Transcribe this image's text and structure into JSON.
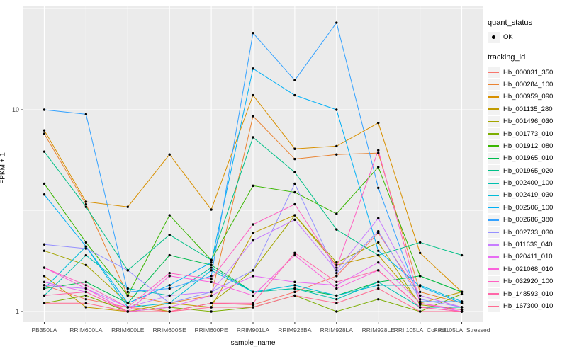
{
  "chart_data": {
    "type": "line",
    "title": "",
    "xlabel": "sample_name",
    "ylabel": "FPKM + 1",
    "y_scale": "log10",
    "y_major_ticks": [
      "1",
      "10"
    ],
    "y_major_values": [
      1,
      10
    ],
    "y_minor_values": [
      3.162,
      31.623
    ],
    "ylim": [
      0.93,
      36
    ],
    "grid": true,
    "legend_position": "right",
    "marker": {
      "shape": "point",
      "color": "#000000",
      "meaning": "quant_status OK"
    },
    "categories": [
      "PB350LA",
      "RRIM600LA",
      "RRIM600LE",
      "RRIM600SE",
      "RRIM600PE",
      "RRIM901LA",
      "RRIM928BA",
      "RRIM928LA",
      "RRIM928LE",
      "RRII105LA_Control",
      "RRII105LA_Stressed"
    ],
    "series": [
      {
        "name": "Hb_000031_350",
        "color": "#F8766D",
        "values": [
          1.35,
          1.15,
          1.05,
          1.0,
          1.1,
          1.08,
          1.25,
          1.5,
          2.45,
          1.2,
          1.05
        ]
      },
      {
        "name": "Hb_000284_100",
        "color": "#EA8331",
        "values": [
          7.6,
          3.4,
          1.2,
          1.1,
          1.2,
          9.3,
          5.7,
          6.0,
          6.1,
          1.25,
          1.1
        ]
      },
      {
        "name": "Hb_000959_090",
        "color": "#D89000",
        "values": [
          7.9,
          3.5,
          3.3,
          6.0,
          3.2,
          11.8,
          6.4,
          6.6,
          8.6,
          1.95,
          1.25
        ]
      },
      {
        "name": "Hb_001135_280",
        "color": "#C09B00",
        "values": [
          1.5,
          1.05,
          1.0,
          1.1,
          1.05,
          2.45,
          3.0,
          1.7,
          1.9,
          1.1,
          1.25
        ]
      },
      {
        "name": "Hb_001496_030",
        "color": "#A3A500",
        "values": [
          2.0,
          1.7,
          1.1,
          1.0,
          1.1,
          1.6,
          3.0,
          1.75,
          2.2,
          1.08,
          1.02
        ]
      },
      {
        "name": "Hb_001773_010",
        "color": "#7CAE00",
        "values": [
          1.1,
          1.2,
          1.0,
          1.05,
          1.0,
          1.05,
          1.2,
          1.0,
          1.15,
          1.0,
          1.22
        ]
      },
      {
        "name": "Hb_001912_080",
        "color": "#39B600",
        "values": [
          4.3,
          2.2,
          1.2,
          3.0,
          1.8,
          4.2,
          3.9,
          3.05,
          5.2,
          1.5,
          1.25
        ]
      },
      {
        "name": "Hb_001965_010",
        "color": "#00BB4E",
        "values": [
          1.3,
          1.4,
          1.1,
          1.9,
          1.7,
          1.25,
          1.3,
          1.2,
          1.4,
          1.5,
          1.25
        ]
      },
      {
        "name": "Hb_001965_020",
        "color": "#00C087",
        "values": [
          6.2,
          3.3,
          1.6,
          2.4,
          1.8,
          7.3,
          4.9,
          2.55,
          1.9,
          2.2,
          1.9
        ]
      },
      {
        "name": "Hb_002400_100",
        "color": "#00C0AF",
        "values": [
          1.2,
          1.9,
          1.3,
          1.2,
          1.65,
          1.25,
          1.3,
          1.15,
          1.4,
          1.05,
          1.05
        ]
      },
      {
        "name": "Hb_002419_030",
        "color": "#00BCD8",
        "values": [
          1.3,
          2.1,
          1.05,
          1.1,
          1.6,
          1.25,
          1.35,
          1.2,
          1.35,
          1.35,
          1.12
        ]
      },
      {
        "name": "Hb_002506_100",
        "color": "#00B0F6",
        "values": [
          3.8,
          2.1,
          1.1,
          1.35,
          1.75,
          16.0,
          11.8,
          10.0,
          2.0,
          1.33,
          1.1
        ]
      },
      {
        "name": "Hb_002686_380",
        "color": "#35A2FF",
        "values": [
          10.0,
          9.5,
          1.25,
          1.3,
          1.5,
          24.0,
          14.0,
          27.0,
          4.1,
          1.12,
          1.12
        ]
      },
      {
        "name": "Hb_002733_030",
        "color": "#9590FF",
        "values": [
          2.15,
          2.05,
          1.6,
          1.1,
          1.25,
          1.6,
          4.3,
          1.55,
          2.5,
          1.15,
          1.05
        ]
      },
      {
        "name": "Hb_011639_040",
        "color": "#C77CFF",
        "values": [
          1.35,
          1.3,
          1.05,
          1.2,
          1.25,
          2.25,
          2.85,
          1.6,
          2.9,
          1.2,
          1.05
        ]
      },
      {
        "name": "Hb_020411_010",
        "color": "#E76BF3",
        "values": [
          1.4,
          1.25,
          1.0,
          1.05,
          1.2,
          1.5,
          1.4,
          1.35,
          1.75,
          1.1,
          1.0
        ]
      },
      {
        "name": "Hb_021068_010",
        "color": "#FA62DB",
        "values": [
          1.65,
          1.3,
          1.0,
          1.5,
          1.4,
          1.2,
          1.9,
          1.3,
          1.6,
          1.05,
          1.0
        ]
      },
      {
        "name": "Hb_032920_100",
        "color": "#FF61C3",
        "values": [
          1.65,
          1.35,
          1.05,
          1.55,
          1.45,
          2.7,
          3.4,
          1.65,
          6.3,
          1.1,
          1.02
        ]
      },
      {
        "name": "Hb_148593_010",
        "color": "#FF66A8",
        "values": [
          1.2,
          1.25,
          1.0,
          1.0,
          1.1,
          1.1,
          1.95,
          1.4,
          1.6,
          1.05,
          1.0
        ]
      },
      {
        "name": "Hb_167300_010",
        "color": "#FF6C91",
        "values": [
          1.1,
          1.1,
          1.0,
          1.0,
          1.05,
          1.05,
          1.2,
          1.1,
          1.3,
          1.0,
          1.0
        ]
      }
    ]
  },
  "legend": {
    "quant_status": {
      "title": "quant_status",
      "items": [
        {
          "label": "OK"
        }
      ]
    },
    "tracking_id": {
      "title": "tracking_id"
    }
  },
  "colors": {
    "panel_bg": "#EBEBEB",
    "grid": "#FFFFFF",
    "axis_text": "#4D4D4D",
    "tick": "#333333",
    "legend_key_bg": "#F2F2F2",
    "point": "#000000"
  }
}
